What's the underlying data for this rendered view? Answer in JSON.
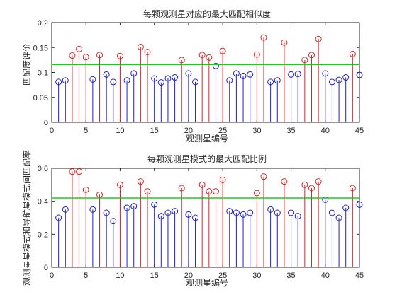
{
  "chart_data": [
    {
      "type": "stem",
      "title": "每颗观测星对应的最大匹配相似度",
      "xlabel": "观测星编号",
      "ylabel": "匹配度评价",
      "xlim": [
        0,
        45
      ],
      "ylim": [
        0,
        0.2
      ],
      "xticks": [
        "0",
        "5",
        "10",
        "15",
        "20",
        "25",
        "30",
        "35",
        "40",
        "45"
      ],
      "yticks": [
        "0",
        "0.05",
        "0.1",
        "0.15",
        "0.2"
      ],
      "threshold": 0.116,
      "colors": {
        "above": "#d62728",
        "below": "#1f1fd0",
        "threshold": "#00e000",
        "axes": "#262626"
      },
      "x": [
        1,
        2,
        3,
        4,
        5,
        6,
        7,
        8,
        9,
        10,
        11,
        12,
        13,
        14,
        15,
        16,
        17,
        18,
        19,
        20,
        21,
        22,
        23,
        24,
        25,
        26,
        27,
        28,
        29,
        30,
        31,
        32,
        33,
        34,
        35,
        36,
        37,
        38,
        39,
        40,
        41,
        42,
        43,
        44,
        45
      ],
      "values": [
        0.081,
        0.084,
        0.134,
        0.147,
        0.131,
        0.086,
        0.135,
        0.096,
        0.081,
        0.133,
        0.084,
        0.098,
        0.151,
        0.141,
        0.088,
        0.08,
        0.088,
        0.09,
        0.125,
        0.098,
        0.081,
        0.135,
        0.13,
        0.113,
        0.143,
        0.084,
        0.098,
        0.093,
        0.096,
        0.136,
        0.17,
        0.081,
        0.084,
        0.16,
        0.096,
        0.097,
        0.125,
        0.135,
        0.167,
        0.098,
        0.081,
        0.085,
        0.09,
        0.137,
        0.095
      ]
    },
    {
      "type": "stem",
      "title": "每颗观测星模式的最大匹配比例",
      "xlabel": "观测星编号",
      "ylabel": "观测星星模式和导航星模式间匹配率",
      "xlim": [
        0,
        45
      ],
      "ylim": [
        0,
        0.6
      ],
      "xticks": [
        "0",
        "5",
        "10",
        "15",
        "20",
        "25",
        "30",
        "35",
        "40",
        "45"
      ],
      "yticks": [
        "0",
        "0.2",
        "0.4",
        "0.6"
      ],
      "threshold": 0.42,
      "colors": {
        "above": "#d62728",
        "below": "#1f1fd0",
        "threshold": "#00e000",
        "axes": "#262626"
      },
      "x": [
        1,
        2,
        3,
        4,
        5,
        6,
        7,
        8,
        9,
        10,
        11,
        12,
        13,
        14,
        15,
        16,
        17,
        18,
        19,
        20,
        21,
        22,
        23,
        24,
        25,
        26,
        27,
        28,
        29,
        30,
        31,
        32,
        33,
        34,
        35,
        36,
        37,
        38,
        39,
        40,
        41,
        42,
        43,
        44,
        45
      ],
      "values": [
        0.3,
        0.35,
        0.58,
        0.58,
        0.47,
        0.35,
        0.44,
        0.33,
        0.28,
        0.5,
        0.36,
        0.37,
        0.52,
        0.46,
        0.38,
        0.31,
        0.33,
        0.34,
        0.48,
        0.32,
        0.3,
        0.5,
        0.46,
        0.46,
        0.53,
        0.34,
        0.33,
        0.32,
        0.33,
        0.45,
        0.55,
        0.35,
        0.33,
        0.52,
        0.33,
        0.31,
        0.5,
        0.48,
        0.52,
        0.41,
        0.33,
        0.3,
        0.36,
        0.48,
        0.38
      ]
    }
  ]
}
